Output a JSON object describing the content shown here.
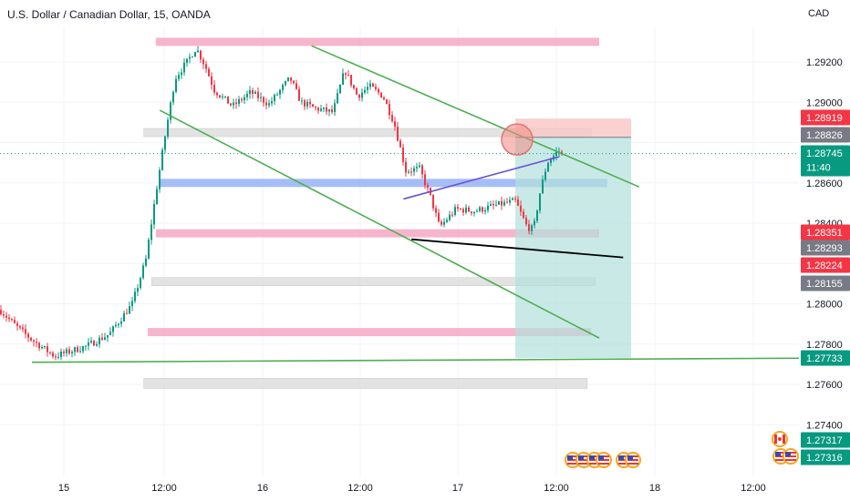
{
  "header": {
    "title": "U.S. Dollar / Canadian Dollar, 15, OANDA",
    "currency": "CAD"
  },
  "colors": {
    "bull": "#089981",
    "bear": "#f23645",
    "channel": "#4caf50",
    "support_pink": "#f5a3c0",
    "support_gray": "#d9d9d9",
    "support_blue": "#90aef5",
    "target_fill": "#b2dfdb",
    "stop_fill": "#f8c6c6",
    "wedge_line": "#6a4fd6",
    "neckline": "#000000"
  },
  "chart_data": {
    "type": "candlestick",
    "symbol": "USDCAD",
    "interval": "15",
    "source": "OANDA",
    "x_ticks": [
      "15",
      "12:00",
      "16",
      "12:00",
      "17",
      "12:00",
      "18",
      "12:00"
    ],
    "y_ticks": [
      "1.29200",
      "1.29000",
      "1.28600",
      "1.28400",
      "1.28000",
      "1.27800",
      "1.27600",
      "1.27400"
    ],
    "ylim": [
      1.2712,
      1.2938
    ],
    "price_labels": [
      {
        "value": "1.28919",
        "color": "#f23645"
      },
      {
        "value": "1.28826",
        "color": "#787b86"
      },
      {
        "value": "1.28745",
        "sub": "11:40",
        "color": "#089981"
      },
      {
        "value": "1.28351",
        "color": "#f23645"
      },
      {
        "value": "1.28293",
        "color": "#787b86"
      },
      {
        "value": "1.28224",
        "color": "#f23645"
      },
      {
        "value": "1.28155",
        "color": "#787b86"
      },
      {
        "value": "1.27733",
        "color": "#089981"
      },
      {
        "value": "1.27317",
        "color": "#089981"
      },
      {
        "value": "1.27316",
        "color": "#089981"
      }
    ],
    "zones": [
      {
        "kind": "pink",
        "x0": 0.195,
        "x1": 0.75,
        "low": 1.2928,
        "high": 1.2932
      },
      {
        "kind": "gray",
        "x0": 0.18,
        "x1": 0.74,
        "low": 1.2883,
        "high": 1.2887
      },
      {
        "kind": "blue",
        "x0": 0.2,
        "x1": 0.76,
        "low": 1.2858,
        "high": 1.2862
      },
      {
        "kind": "pink",
        "x0": 0.195,
        "x1": 0.75,
        "low": 1.2833,
        "high": 1.2837
      },
      {
        "kind": "gray",
        "x0": 0.19,
        "x1": 0.745,
        "low": 1.2809,
        "high": 1.2813
      },
      {
        "kind": "pink",
        "x0": 0.185,
        "x1": 0.74,
        "low": 1.2784,
        "high": 1.2788
      },
      {
        "kind": "gray",
        "x0": 0.18,
        "x1": 0.735,
        "low": 1.2758,
        "high": 1.2763
      }
    ],
    "channel_lines": [
      {
        "x0": 0.39,
        "y0": 1.2928,
        "x1": 0.8,
        "y1": 1.2858
      },
      {
        "x0": 0.2,
        "y0": 1.2896,
        "x1": 0.75,
        "y1": 1.2783
      },
      {
        "x0": 0.04,
        "y0": 1.2771,
        "x1": 1.0,
        "y1": 1.2773
      }
    ],
    "wedge_line": {
      "x0": 0.505,
      "y0": 1.2852,
      "x1": 0.7,
      "y1": 1.2873
    },
    "neckline": {
      "x0": 0.515,
      "y0": 1.2832,
      "x1": 0.78,
      "y1": 1.2823
    },
    "position": {
      "x0": 0.645,
      "x1": 0.79,
      "entry": 1.28826,
      "stop": 1.28919,
      "target": 1.2773
    },
    "marker_circle": {
      "x": 0.645,
      "y": 1.28815
    },
    "close": 1.28745
  }
}
